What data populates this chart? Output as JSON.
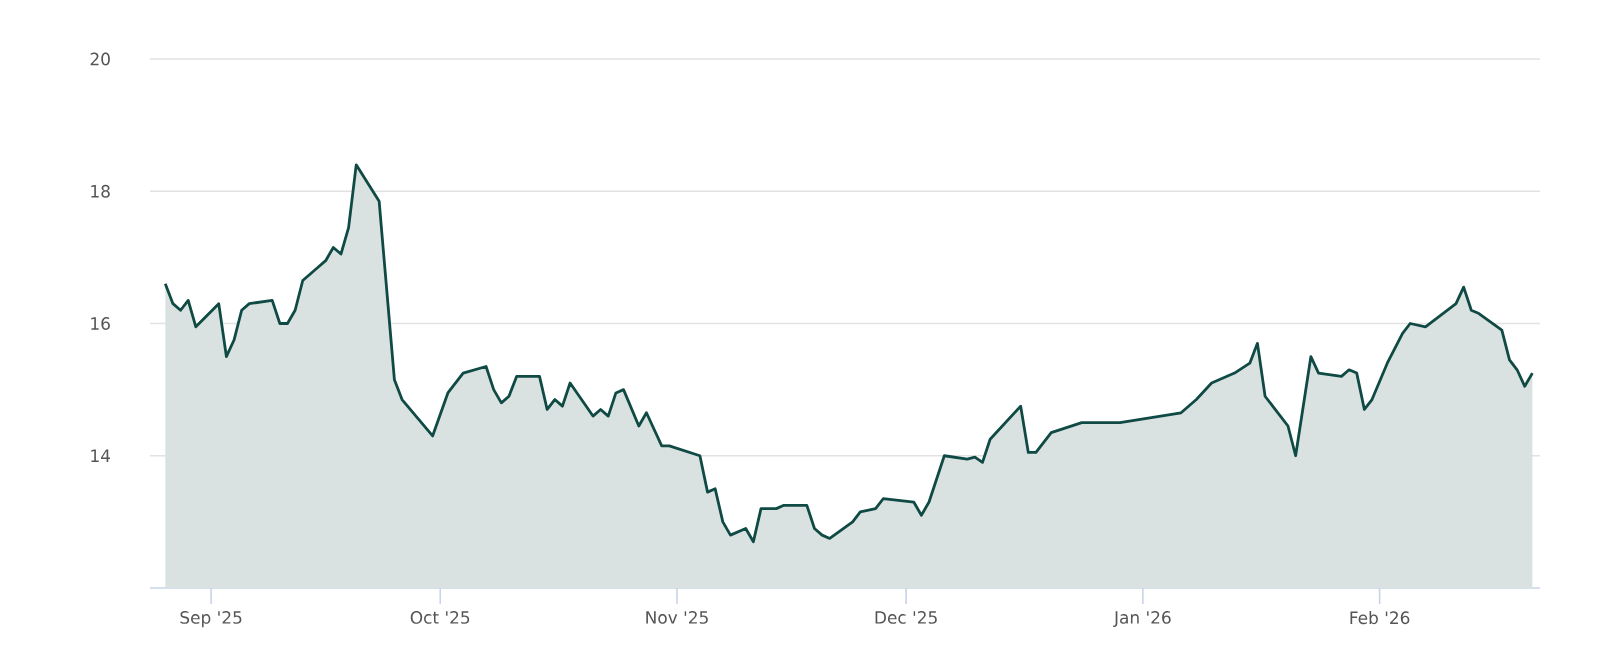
{
  "chart_data": {
    "type": "area",
    "color": "#0f4a44",
    "grid": "y",
    "ylim": [
      12,
      20
    ],
    "yticks": [
      14,
      16,
      18,
      20
    ],
    "xlim": [
      "2025-08-24",
      "2026-02-22"
    ],
    "xticks": [
      {
        "value": "2025-09-01",
        "label": "Sep '25"
      },
      {
        "value": "2025-10-01",
        "label": "Oct '25"
      },
      {
        "value": "2025-11-01",
        "label": "Nov '25"
      },
      {
        "value": "2025-12-01",
        "label": "Dec '25"
      },
      {
        "value": "2026-01-01",
        "label": "Jan '26"
      },
      {
        "value": "2026-02-01",
        "label": "Feb '26"
      }
    ],
    "x": [
      "2025-08-26",
      "2025-08-27",
      "2025-08-28",
      "2025-08-29",
      "2025-08-30",
      "2025-09-02",
      "2025-09-03",
      "2025-09-04",
      "2025-09-05",
      "2025-09-06",
      "2025-09-09",
      "2025-09-10",
      "2025-09-11",
      "2025-09-12",
      "2025-09-13",
      "2025-09-15",
      "2025-09-16",
      "2025-09-17",
      "2025-09-18",
      "2025-09-19",
      "2025-09-20",
      "2025-09-23",
      "2025-09-25",
      "2025-09-26",
      "2025-09-30",
      "2025-10-02",
      "2025-10-04",
      "2025-10-07",
      "2025-10-08",
      "2025-10-09",
      "2025-10-10",
      "2025-10-11",
      "2025-10-14",
      "2025-10-15",
      "2025-10-16",
      "2025-10-17",
      "2025-10-18",
      "2025-10-21",
      "2025-10-22",
      "2025-10-23",
      "2025-10-24",
      "2025-10-25",
      "2025-10-27",
      "2025-10-28",
      "2025-10-30",
      "2025-10-31",
      "2025-11-04",
      "2025-11-05",
      "2025-11-06",
      "2025-11-07",
      "2025-11-08",
      "2025-11-10",
      "2025-11-11",
      "2025-11-12",
      "2025-11-14",
      "2025-11-15",
      "2025-11-18",
      "2025-11-19",
      "2025-11-20",
      "2025-11-21",
      "2025-11-24",
      "2025-11-25",
      "2025-11-27",
      "2025-11-28",
      "2025-12-02",
      "2025-12-03",
      "2025-12-04",
      "2025-12-06",
      "2025-12-09",
      "2025-12-10",
      "2025-12-11",
      "2025-12-12",
      "2025-12-16",
      "2025-12-17",
      "2025-12-18",
      "2025-12-20",
      "2025-12-24",
      "2025-12-29",
      "2026-01-06",
      "2026-01-08",
      "2026-01-10",
      "2026-01-13",
      "2026-01-15",
      "2026-01-16",
      "2026-01-17",
      "2026-01-20",
      "2026-01-21",
      "2026-01-23",
      "2026-01-24",
      "2026-01-27",
      "2026-01-28",
      "2026-01-29",
      "2026-01-30",
      "2026-01-31",
      "2026-02-02",
      "2026-02-04",
      "2026-02-05",
      "2026-02-07",
      "2026-02-11",
      "2026-02-12",
      "2026-02-13",
      "2026-02-14",
      "2026-02-17",
      "2026-02-18",
      "2026-02-19",
      "2026-02-20",
      "2026-02-21"
    ],
    "values": [
      16.6,
      16.3,
      16.2,
      16.35,
      15.95,
      16.3,
      15.5,
      15.75,
      16.2,
      16.3,
      16.35,
      16.0,
      16.0,
      16.2,
      16.65,
      16.85,
      16.95,
      17.15,
      17.05,
      17.45,
      18.4,
      17.85,
      15.15,
      14.85,
      14.3,
      14.95,
      15.25,
      15.35,
      15.0,
      14.8,
      14.9,
      15.2,
      15.2,
      14.7,
      14.85,
      14.75,
      15.1,
      14.6,
      14.7,
      14.6,
      14.95,
      15.0,
      14.45,
      14.65,
      14.15,
      14.15,
      14.0,
      13.45,
      13.5,
      13.0,
      12.8,
      12.9,
      12.7,
      13.2,
      13.2,
      13.25,
      13.25,
      12.9,
      12.8,
      12.75,
      13.0,
      13.15,
      13.2,
      13.35,
      13.3,
      13.1,
      13.3,
      14.0,
      13.95,
      13.98,
      13.9,
      14.25,
      14.75,
      14.05,
      14.05,
      14.35,
      14.5,
      14.5,
      14.65,
      14.85,
      15.1,
      15.25,
      15.4,
      15.7,
      14.9,
      14.45,
      14.0,
      15.5,
      15.25,
      15.2,
      15.3,
      15.25,
      14.7,
      14.85,
      15.4,
      15.85,
      16.0,
      15.95,
      16.3,
      16.55,
      16.2,
      16.15,
      15.9,
      15.45,
      15.3,
      15.05,
      15.25
    ]
  }
}
